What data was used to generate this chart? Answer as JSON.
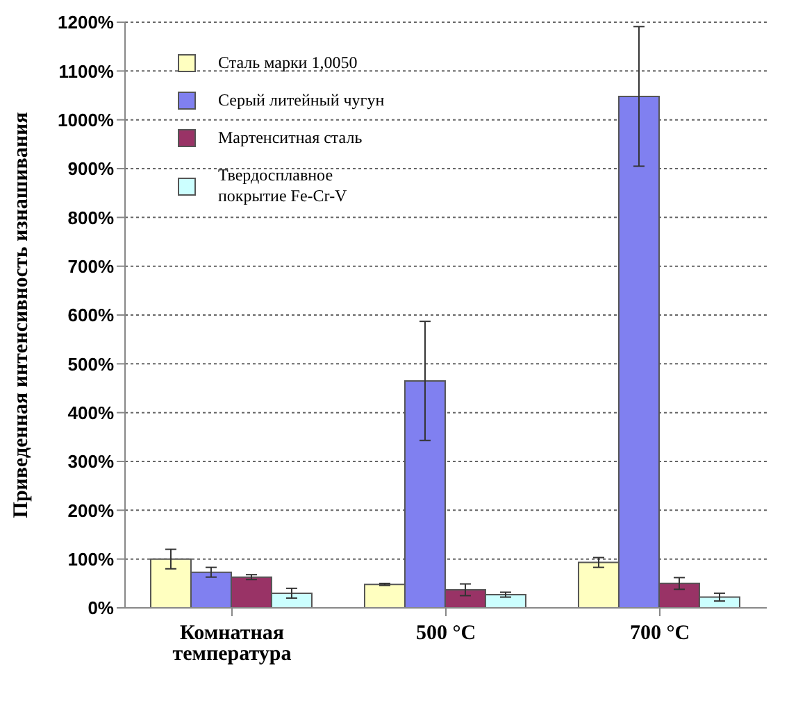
{
  "chart_data": {
    "type": "bar",
    "ylabel": "Приведенная интенсивность изнашивания",
    "categories": [
      "Комнатная температура",
      "500 °C",
      "700 °C"
    ],
    "series": [
      {
        "name": "Сталь марки 1,0050",
        "color": "#ffffc0",
        "values": [
          100,
          48,
          93
        ],
        "errors": [
          20,
          2,
          10
        ]
      },
      {
        "name": "Серый литейный чугун",
        "color": "#8080f0",
        "values": [
          73,
          465,
          1048
        ],
        "errors": [
          10,
          122,
          143
        ]
      },
      {
        "name": "Мартенситная сталь",
        "color": "#993366",
        "values": [
          63,
          37,
          50
        ],
        "errors": [
          5,
          12,
          12
        ]
      },
      {
        "name": "Твердосплавное покрытие Fe-Cr-V",
        "color": "#ccffff",
        "values": [
          30,
          27,
          22
        ],
        "errors": [
          10,
          5,
          8
        ]
      }
    ],
    "ylim": [
      0,
      1200
    ],
    "yticks": [
      {
        "value": 0,
        "label": "0%"
      },
      {
        "value": 100,
        "label": "100%"
      },
      {
        "value": 200,
        "label": "200%"
      },
      {
        "value": 300,
        "label": "300%"
      },
      {
        "value": 400,
        "label": "400%"
      },
      {
        "value": 500,
        "label": "500%"
      },
      {
        "value": 600,
        "label": "600%"
      },
      {
        "value": 700,
        "label": "700%"
      },
      {
        "value": 800,
        "label": "800%"
      },
      {
        "value": 900,
        "label": "900%"
      },
      {
        "value": 1000,
        "label": "1000%"
      },
      {
        "value": 1100,
        "label": "1100%"
      },
      {
        "value": 1200,
        "label": "1200%"
      }
    ],
    "grid": "y",
    "legend": "top left"
  }
}
